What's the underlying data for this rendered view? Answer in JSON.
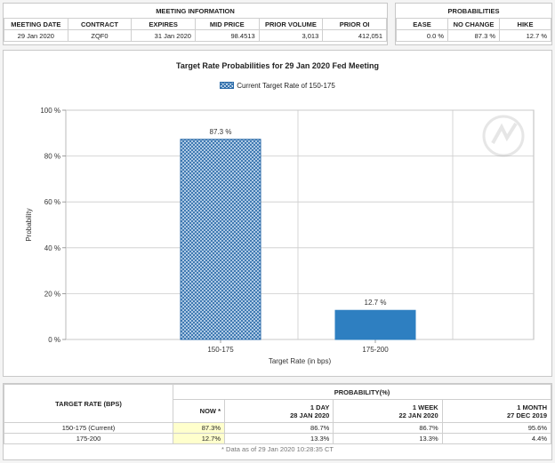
{
  "meeting_info": {
    "title": "MEETING INFORMATION",
    "headers": [
      "MEETING DATE",
      "CONTRACT",
      "EXPIRES",
      "MID PRICE",
      "PRIOR VOLUME",
      "PRIOR OI"
    ],
    "values": [
      "29 Jan 2020",
      "ZQF0",
      "31 Jan 2020",
      "98.4513",
      "3,013",
      "412,051"
    ]
  },
  "probabilities": {
    "title": "PROBABILITIES",
    "headers": [
      "EASE",
      "NO CHANGE",
      "HIKE"
    ],
    "values": [
      "0.0 %",
      "87.3 %",
      "12.7 %"
    ]
  },
  "chart_data": {
    "type": "bar",
    "title": "Target Rate Probabilities for 29 Jan 2020 Fed Meeting",
    "legend": "Current Target Rate of 150-175",
    "xlabel": "Target Rate (in bps)",
    "ylabel": "Probability",
    "categories": [
      "150-175",
      "175-200"
    ],
    "values": [
      87.3,
      12.7
    ],
    "value_labels": [
      "87.3 %",
      "12.7 %"
    ],
    "ylim": [
      0,
      100
    ],
    "yticks": [
      0,
      20,
      40,
      60,
      80,
      100
    ],
    "ytick_labels": [
      "0 %",
      "20 %",
      "40 %",
      "60 %",
      "80 %",
      "100 %"
    ],
    "colors": {
      "current": "#2a6aa8",
      "current_fill": "#cfe1f3",
      "other": "#2e7fc1"
    },
    "grid": true
  },
  "rate_table": {
    "target_header": "TARGET RATE (BPS)",
    "prob_header": "PROBABILITY(%)",
    "columns": [
      {
        "line1": "NOW *",
        "line2": ""
      },
      {
        "line1": "1 DAY",
        "line2": "28 JAN 2020"
      },
      {
        "line1": "1 WEEK",
        "line2": "22 JAN 2020"
      },
      {
        "line1": "1 MONTH",
        "line2": "27 DEC 2019"
      }
    ],
    "rows": [
      {
        "rate": "150-175 (Current)",
        "values": [
          "87.3%",
          "86.7%",
          "86.7%",
          "95.6%"
        ]
      },
      {
        "rate": "175-200",
        "values": [
          "12.7%",
          "13.3%",
          "13.3%",
          "4.4%"
        ]
      }
    ],
    "footnote": "* Data as of 29 Jan 2020 10:28:35 CT"
  }
}
